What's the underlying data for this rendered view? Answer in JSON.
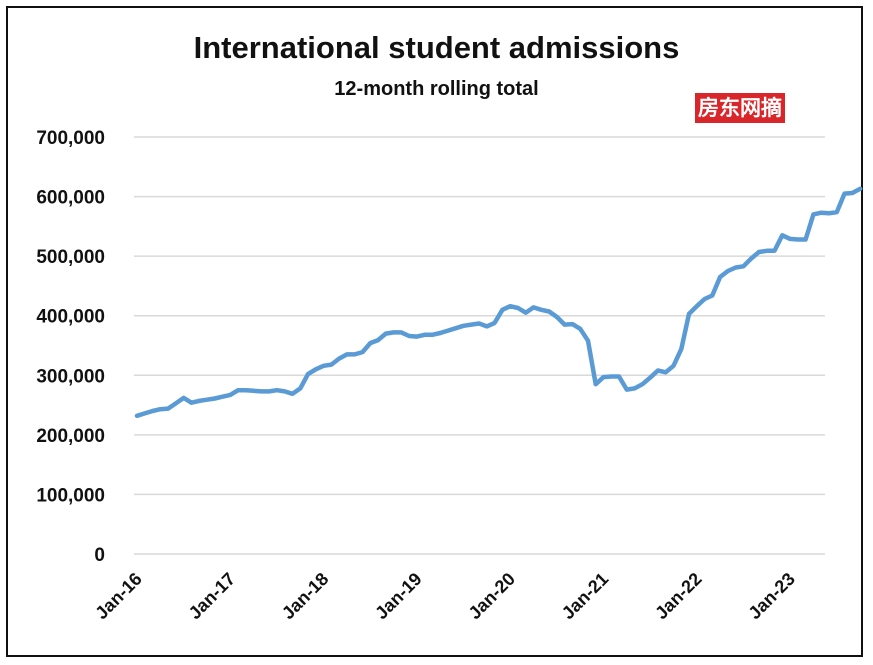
{
  "title": "International student admissions",
  "subtitle": "12-month rolling total",
  "watermark": "房东网摘",
  "colors": {
    "line": "#5b9bd5",
    "grid": "#d9d9d9",
    "text": "#111111",
    "watermark_bg": "#d8262a"
  },
  "chart_data": {
    "type": "line",
    "title": "International student admissions",
    "subtitle": "12-month rolling total",
    "xlabel": "",
    "ylabel": "",
    "ylim": [
      0,
      700000
    ],
    "yticks": [
      0,
      100000,
      200000,
      300000,
      400000,
      500000,
      600000,
      700000
    ],
    "ytick_labels": [
      "0",
      "100,000",
      "200,000",
      "300,000",
      "400,000",
      "500,000",
      "600,000",
      "700,000"
    ],
    "xtick_labels": [
      "Jan-16",
      "Jan-17",
      "Jan-18",
      "Jan-19",
      "Jan-20",
      "Jan-21",
      "Jan-22",
      "Jan-23"
    ],
    "grid": true,
    "legend": "none",
    "x_start": "2016-01",
    "x_interval": "month",
    "series": [
      {
        "name": "",
        "values": [
          232000,
          236000,
          240000,
          243000,
          244000,
          253000,
          262000,
          254000,
          257000,
          259000,
          261000,
          264000,
          267000,
          275000,
          275000,
          274000,
          273000,
          273000,
          275000,
          273000,
          269000,
          278000,
          302000,
          310000,
          316000,
          318000,
          328000,
          335000,
          335000,
          339000,
          354000,
          359000,
          370000,
          372000,
          372000,
          366000,
          365000,
          368000,
          368000,
          371000,
          375000,
          379000,
          383000,
          385000,
          387000,
          382000,
          388000,
          410000,
          416000,
          413000,
          405000,
          414000,
          410000,
          407000,
          398000,
          385000,
          386000,
          378000,
          358000,
          285000,
          297000,
          298000,
          298000,
          276000,
          278000,
          285000,
          296000,
          308000,
          305000,
          316000,
          344000,
          403000,
          416000,
          428000,
          434000,
          465000,
          475000,
          481000,
          483000,
          496000,
          507000,
          509000,
          509000,
          535000,
          529000,
          528000,
          528000,
          570000,
          573000,
          572000,
          574000,
          605000,
          606000,
          613000
        ]
      }
    ]
  }
}
